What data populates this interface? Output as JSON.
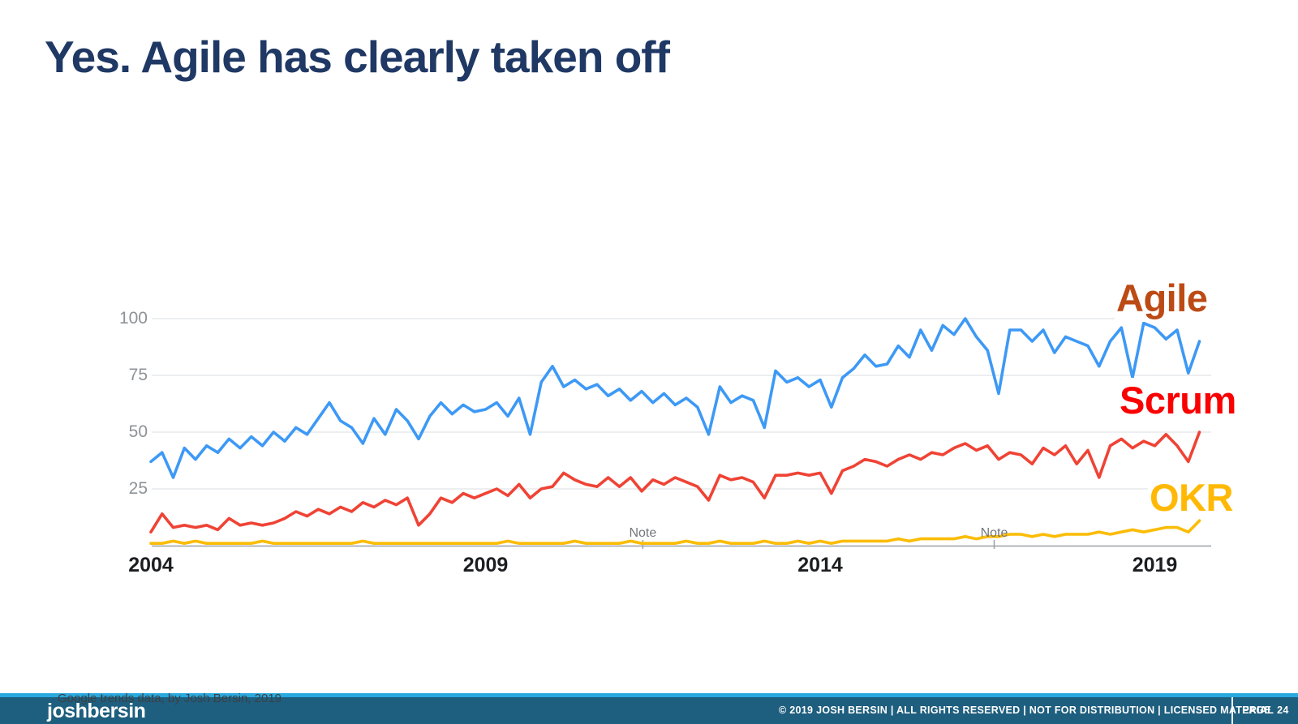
{
  "slide": {
    "title": "Yes. Agile has clearly taken off",
    "source_note": "Google trends data, by Josh Bersin, 2019"
  },
  "footer": {
    "logo": "joshbersin",
    "copyright": "© 2019 JOSH BERSIN | ALL RIGHTS RESERVED | NOT FOR DISTRIBUTION | LICENSED MATERIAL",
    "page_label": "PAGE",
    "page_number": "24"
  },
  "colors": {
    "title_navy": "#1F3864",
    "footer_bar_teal": "#1E5E7E",
    "footer_stripe_cyan": "#2AA9DE",
    "gridline_gray": "#E1E3E6",
    "axis_baseline_gray": "#9AA0A6",
    "axis_label_gray": "#8D9297",
    "year_label_black": "#1C1E21",
    "note_gray": "#72777C"
  },
  "chart_data": {
    "type": "line",
    "title": "",
    "xlabel": "",
    "ylabel": "",
    "x_start": 2004,
    "x_step_years": 0.16667,
    "xlim": [
      2004,
      2019.75
    ],
    "ylim": [
      0,
      100
    ],
    "grid": "horizontal gridlines at 25/50/75/100, gray baseline at 0",
    "legend_position": "stacked colored labels at right edge of plot",
    "x_tick_labels": [
      "2004",
      "2009",
      "2014",
      "2019"
    ],
    "x_tick_years": [
      2004,
      2009,
      2014,
      2019
    ],
    "y_tick_labels": [
      "100",
      "75",
      "50",
      "25"
    ],
    "y_gridlines": [
      100,
      75,
      50,
      25
    ],
    "annotations": [
      {
        "label": "Note",
        "year": 2011.35
      },
      {
        "label": "Note",
        "year": 2016.6
      }
    ],
    "series": [
      {
        "name": "Agile",
        "color": "#3D99F5",
        "label_color": "#BC4A14",
        "values": [
          37,
          41,
          30,
          43,
          38,
          44,
          41,
          47,
          43,
          48,
          44,
          50,
          46,
          52,
          49,
          56,
          63,
          55,
          52,
          45,
          56,
          49,
          60,
          55,
          47,
          57,
          63,
          58,
          62,
          59,
          60,
          63,
          57,
          65,
          49,
          72,
          79,
          70,
          73,
          69,
          71,
          66,
          69,
          64,
          68,
          63,
          67,
          62,
          65,
          61,
          49,
          70,
          63,
          66,
          64,
          52,
          77,
          72,
          74,
          70,
          73,
          61,
          74,
          78,
          84,
          79,
          80,
          88,
          83,
          95,
          86,
          97,
          93,
          100,
          92,
          86,
          67,
          95,
          95,
          90,
          95,
          85,
          92,
          90,
          88,
          79,
          90,
          96,
          74,
          98,
          96,
          91,
          95,
          76,
          90
        ]
      },
      {
        "name": "Scrum",
        "color": "#EF4335",
        "label_color": "#FA0000",
        "values": [
          6,
          14,
          8,
          9,
          8,
          9,
          7,
          12,
          9,
          10,
          9,
          10,
          12,
          15,
          13,
          16,
          14,
          17,
          15,
          19,
          17,
          20,
          18,
          21,
          9,
          14,
          21,
          19,
          23,
          21,
          23,
          25,
          22,
          27,
          21,
          25,
          26,
          32,
          29,
          27,
          26,
          30,
          26,
          30,
          24,
          29,
          27,
          30,
          28,
          26,
          20,
          31,
          29,
          30,
          28,
          21,
          31,
          31,
          32,
          31,
          32,
          23,
          33,
          35,
          38,
          37,
          35,
          38,
          40,
          38,
          41,
          40,
          43,
          45,
          42,
          44,
          38,
          41,
          40,
          36,
          43,
          40,
          44,
          36,
          42,
          30,
          44,
          47,
          43,
          46,
          44,
          49,
          44,
          37,
          50
        ]
      },
      {
        "name": "OKR",
        "color": "#FBBC05",
        "label_color": "#FFB905",
        "values": [
          1,
          1,
          2,
          1,
          2,
          1,
          1,
          1,
          1,
          1,
          2,
          1,
          1,
          1,
          1,
          1,
          1,
          1,
          1,
          2,
          1,
          1,
          1,
          1,
          1,
          1,
          1,
          1,
          1,
          1,
          1,
          1,
          2,
          1,
          1,
          1,
          1,
          1,
          2,
          1,
          1,
          1,
          1,
          2,
          1,
          1,
          1,
          1,
          2,
          1,
          1,
          2,
          1,
          1,
          1,
          2,
          1,
          1,
          2,
          1,
          2,
          1,
          2,
          2,
          2,
          2,
          2,
          3,
          2,
          3,
          3,
          3,
          3,
          4,
          3,
          4,
          4,
          5,
          5,
          4,
          5,
          4,
          5,
          5,
          5,
          6,
          5,
          6,
          7,
          6,
          7,
          8,
          8,
          6,
          11
        ]
      }
    ]
  }
}
